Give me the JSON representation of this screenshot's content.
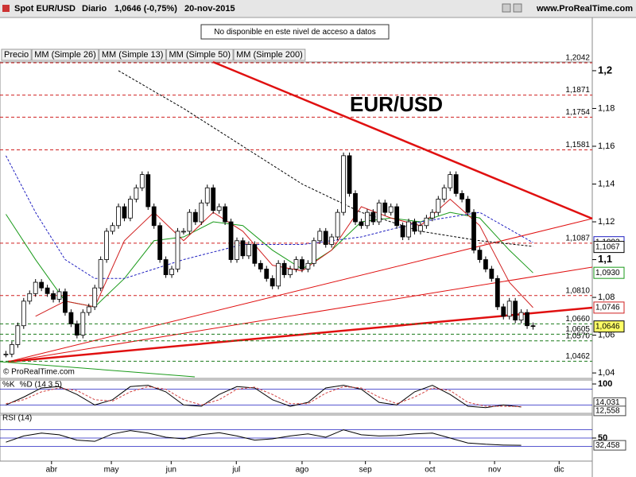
{
  "header": {
    "symbol": "Spot EUR/USD",
    "period": "Diario",
    "last": "1,0646 (-0,75%)",
    "date": "20-nov-2015",
    "site": "www.ProRealTime.com",
    "notice": "No disponible en este nivel de acceso a datos",
    "copyright": "© ProRealTime.com"
  },
  "chart_data": [
    {
      "type": "candlestick",
      "title": "EUR/USD",
      "price_name": "Precio",
      "closes": [
        1.05,
        1.055,
        1.065,
        1.078,
        1.082,
        1.088,
        1.085,
        1.082,
        1.079,
        1.083,
        1.072,
        1.066,
        1.06,
        1.072,
        1.075,
        1.085,
        1.1,
        1.115,
        1.118,
        1.128,
        1.122,
        1.132,
        1.138,
        1.145,
        1.128,
        1.118,
        1.1,
        1.092,
        1.095,
        1.115,
        1.115,
        1.125,
        1.12,
        1.13,
        1.138,
        1.126,
        1.128,
        1.12,
        1.1,
        1.11,
        1.102,
        1.108,
        1.098,
        1.095,
        1.09,
        1.086,
        1.098,
        1.092,
        1.095,
        1.1,
        1.095,
        1.098,
        1.11,
        1.115,
        1.108,
        1.112,
        1.125,
        1.155,
        1.135,
        1.12,
        1.118,
        1.125,
        1.12,
        1.13,
        1.125,
        1.128,
        1.118,
        1.112,
        1.12,
        1.115,
        1.118,
        1.122,
        1.125,
        1.132,
        1.138,
        1.145,
        1.135,
        1.132,
        1.125,
        1.105,
        1.1,
        1.095,
        1.09,
        1.075,
        1.07,
        1.078,
        1.068,
        1.072,
        1.065,
        1.0646
      ],
      "series": [
        {
          "name": "MM (Simple 26)",
          "color": "#1a9a1a",
          "x": [
            0,
            5,
            10,
            15,
            20,
            25,
            30,
            35,
            40,
            45,
            50,
            55,
            60,
            65,
            70,
            75,
            80,
            85,
            89
          ],
          "values": [
            1.124,
            1.1,
            1.078,
            1.075,
            1.09,
            1.11,
            1.112,
            1.12,
            1.118,
            1.105,
            1.095,
            1.105,
            1.12,
            1.122,
            1.12,
            1.125,
            1.122,
            1.105,
            1.093
          ]
        },
        {
          "name": "MM (Simple 13)",
          "color": "#d02020",
          "x": [
            5,
            10,
            15,
            20,
            25,
            30,
            35,
            40,
            45,
            50,
            55,
            60,
            65,
            70,
            75,
            80,
            85,
            89
          ],
          "values": [
            1.07,
            1.078,
            1.075,
            1.11,
            1.125,
            1.11,
            1.125,
            1.115,
            1.097,
            1.094,
            1.105,
            1.128,
            1.122,
            1.118,
            1.132,
            1.118,
            1.088,
            1.0746
          ]
        },
        {
          "name": "MM (Simple 50)",
          "color": "#2020c0",
          "x": [
            0,
            5,
            10,
            15,
            20,
            30,
            40,
            50,
            60,
            70,
            80,
            89
          ],
          "values": [
            1.155,
            1.125,
            1.1,
            1.09,
            1.09,
            1.1,
            1.108,
            1.108,
            1.112,
            1.12,
            1.125,
            1.109
          ]
        },
        {
          "name": "MM (Simple 200)",
          "color": "#000000",
          "x": [
            19,
            30,
            40,
            50,
            60,
            70,
            80,
            89
          ],
          "values": [
            1.2,
            1.18,
            1.16,
            1.14,
            1.125,
            1.115,
            1.11,
            1.107
          ]
        }
      ],
      "levels": [
        {
          "value": 1.2042,
          "label": "1,2042",
          "color": "#d02020"
        },
        {
          "value": 1.1871,
          "label": "1,1871",
          "color": "#d02020"
        },
        {
          "value": 1.1754,
          "label": "1,1754",
          "color": "#d02020"
        },
        {
          "value": 1.1581,
          "label": "1,1581",
          "color": "#d02020"
        },
        {
          "value": 1.1087,
          "label": "1,1087",
          "color": "#d02020"
        },
        {
          "value": 1.081,
          "label": "1,0810",
          "color": "#d02020"
        },
        {
          "value": 1.066,
          "label": "1,0660",
          "color": "#1a7a1a"
        },
        {
          "value": 1.0605,
          "label": "1,0605",
          "color": "#1a7a1a"
        },
        {
          "value": 1.057,
          "label": "1,0570",
          "color": "#1a7a1a"
        },
        {
          "value": 1.0462,
          "label": "1,0462",
          "color": "#1a7a1a"
        }
      ],
      "price_labels": [
        {
          "value": 1.1092,
          "label": "1,1092",
          "color": "#2020c0"
        },
        {
          "value": 1.1067,
          "label": "1,1067",
          "color": "#000000"
        },
        {
          "value": 1.093,
          "label": "1,0930",
          "color": "#1a9a1a"
        },
        {
          "value": 1.0746,
          "label": "1,0746",
          "color": "#d02020"
        },
        {
          "value": 1.0646,
          "label": "1,0646",
          "color": "#000000"
        }
      ],
      "xlim": [
        -1,
        99
      ],
      "xticks": [
        {
          "value": 7.7,
          "label": "abr"
        },
        {
          "value": 17.8,
          "label": "may"
        },
        {
          "value": 27.9,
          "label": "jun"
        },
        {
          "value": 38.9,
          "label": "jul"
        },
        {
          "value": 50,
          "label": "ago"
        },
        {
          "value": 60.7,
          "label": "sep"
        },
        {
          "value": 71.6,
          "label": "oct"
        },
        {
          "value": 82.5,
          "label": "nov"
        },
        {
          "value": 93.4,
          "label": "dic"
        }
      ],
      "ylim": [
        1.0371,
        1.2046
      ],
      "yticks": [
        {
          "value": 1.2,
          "label": "1,2"
        },
        {
          "value": 1.18,
          "label": "1,18"
        },
        {
          "value": 1.16,
          "label": "1,16"
        },
        {
          "value": 1.14,
          "label": "1,14"
        },
        {
          "value": 1.12,
          "label": "1,12"
        },
        {
          "value": 1.1,
          "label": "1,1"
        },
        {
          "value": 1.08,
          "label": "1,08"
        },
        {
          "value": 1.06,
          "label": "1,06"
        },
        {
          "value": 1.04,
          "label": "1,04"
        }
      ]
    },
    {
      "type": "line",
      "title": "%K",
      "subtitle": "%D (14 3 5)",
      "x": [
        0,
        3,
        6,
        9,
        12,
        15,
        18,
        21,
        24,
        27,
        30,
        33,
        36,
        39,
        42,
        45,
        48,
        51,
        54,
        57,
        60,
        63,
        66,
        69,
        72,
        75,
        78,
        81,
        84,
        87
      ],
      "series": [
        {
          "name": "%K",
          "color": "#000000",
          "values": [
            20,
            50,
            85,
            90,
            60,
            20,
            40,
            90,
            95,
            70,
            20,
            15,
            60,
            90,
            85,
            40,
            15,
            30,
            85,
            95,
            80,
            30,
            20,
            70,
            95,
            60,
            15,
            10,
            20,
            12.558
          ]
        },
        {
          "name": "%D",
          "color": "#d04040",
          "values": [
            25,
            40,
            70,
            85,
            75,
            40,
            35,
            70,
            90,
            80,
            40,
            20,
            40,
            80,
            88,
            60,
            25,
            25,
            65,
            90,
            85,
            50,
            25,
            50,
            85,
            75,
            30,
            15,
            15,
            14.031
          ]
        }
      ],
      "end_labels": [
        {
          "value": 14.031,
          "label": "14,031"
        },
        {
          "value": 12.558,
          "label": "12,558"
        }
      ],
      "levels": [
        20,
        80
      ],
      "ylim": [
        0,
        100
      ],
      "yticks": [
        100
      ]
    },
    {
      "type": "line",
      "title": "RSI (14)",
      "x": [
        0,
        3,
        6,
        9,
        12,
        15,
        18,
        21,
        24,
        27,
        30,
        33,
        36,
        39,
        42,
        45,
        48,
        51,
        54,
        57,
        60,
        63,
        66,
        69,
        72,
        75,
        78,
        81,
        84,
        87
      ],
      "series": [
        {
          "name": "RSI",
          "color": "#000000",
          "values": [
            40,
            55,
            62,
            58,
            45,
            42,
            60,
            68,
            62,
            52,
            48,
            58,
            63,
            55,
            45,
            48,
            55,
            60,
            52,
            70,
            58,
            55,
            56,
            60,
            62,
            50,
            38,
            35,
            33,
            32.458
          ]
        }
      ],
      "end_labels": [
        {
          "value": 32.458,
          "label": "32,458"
        }
      ],
      "levels": [
        30,
        50,
        70
      ],
      "ylim": [
        0,
        100
      ],
      "yticks": [
        50
      ]
    }
  ]
}
